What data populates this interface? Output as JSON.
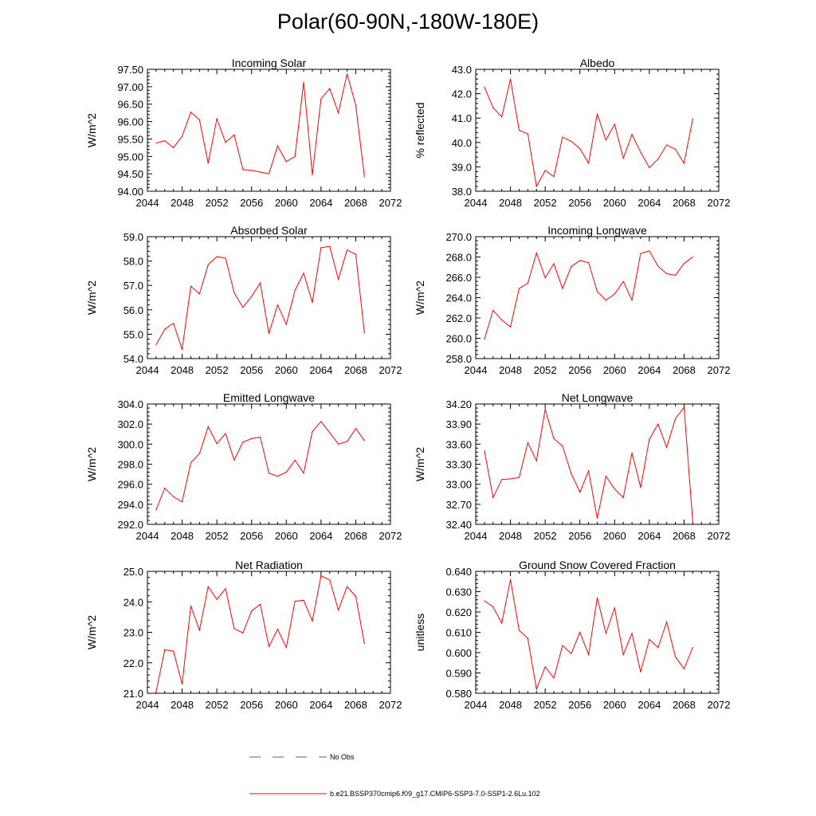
{
  "page_title": "Polar(60-90N,-180W-180E)",
  "colors": {
    "model_line": "#ff0000",
    "obs_line": "#5060a0",
    "axis": "#000000"
  },
  "legend": {
    "obs_label": "No Obs",
    "model_label": "b.e21.BSSP370cmip6.f09_g17.CMIP6-SSP3-7.0-SSP1-2.6Lu.102"
  },
  "chart_data": [
    {
      "type": "line",
      "title": "Incoming Solar",
      "ylabel": "W/m^2",
      "xlim": [
        2044,
        2072
      ],
      "ylim": [
        94.0,
        97.5
      ],
      "xticks": [
        "2044",
        "2048",
        "2052",
        "2056",
        "2060",
        "2064",
        "2068",
        "2072"
      ],
      "yticks": [
        "94.00",
        "94.50",
        "95.00",
        "95.50",
        "96.00",
        "96.50",
        "97.00",
        "97.50"
      ],
      "x": [
        2045,
        2046,
        2047,
        2048,
        2049,
        2050,
        2051,
        2052,
        2053,
        2054,
        2055,
        2056,
        2057,
        2058,
        2059,
        2060,
        2061,
        2062,
        2063,
        2064,
        2065,
        2066,
        2067,
        2068,
        2069
      ],
      "series": [
        {
          "name": "b.e21.BSSP370cmip6.f09_g17.CMIP6-SSP3-7.0-SSP1-2.6Lu.102",
          "values": [
            95.38,
            95.45,
            95.25,
            95.58,
            96.27,
            96.05,
            94.8,
            96.08,
            95.4,
            95.62,
            94.62,
            94.6,
            94.55,
            94.5,
            95.3,
            94.85,
            95.0,
            97.13,
            94.47,
            96.65,
            96.95,
            96.25,
            97.37,
            96.47,
            94.41
          ]
        }
      ]
    },
    {
      "type": "line",
      "title": "Albedo",
      "ylabel": "% reflected",
      "xlim": [
        2044,
        2072
      ],
      "ylim": [
        38.0,
        43.0
      ],
      "xticks": [
        "2044",
        "2048",
        "2052",
        "2056",
        "2060",
        "2064",
        "2068",
        "2072"
      ],
      "yticks": [
        "38.0",
        "39.0",
        "40.0",
        "41.0",
        "42.0",
        "43.0"
      ],
      "x": [
        2045,
        2046,
        2047,
        2048,
        2049,
        2050,
        2051,
        2052,
        2053,
        2054,
        2055,
        2056,
        2057,
        2058,
        2059,
        2060,
        2061,
        2062,
        2063,
        2064,
        2065,
        2066,
        2067,
        2068,
        2069
      ],
      "series": [
        {
          "name": "b.e21.BSSP370cmip6.f09_g17.CMIP6-SSP3-7.0-SSP1-2.6Lu.102",
          "values": [
            42.27,
            41.42,
            41.05,
            42.6,
            40.5,
            40.35,
            38.2,
            38.85,
            38.6,
            40.22,
            40.05,
            39.75,
            39.15,
            41.17,
            40.1,
            40.75,
            39.35,
            40.33,
            39.6,
            38.97,
            39.32,
            39.9,
            39.72,
            39.15,
            40.97
          ]
        }
      ]
    },
    {
      "type": "line",
      "title": "Absorbed Solar",
      "ylabel": "W/m^2",
      "xlim": [
        2044,
        2072
      ],
      "ylim": [
        54.0,
        59.0
      ],
      "xticks": [
        "2044",
        "2048",
        "2052",
        "2056",
        "2060",
        "2064",
        "2068",
        "2072"
      ],
      "yticks": [
        "54.0",
        "55.0",
        "56.0",
        "57.0",
        "58.0",
        "59.0"
      ],
      "x": [
        2045,
        2046,
        2047,
        2048,
        2049,
        2050,
        2051,
        2052,
        2053,
        2054,
        2055,
        2056,
        2057,
        2058,
        2059,
        2060,
        2061,
        2062,
        2063,
        2064,
        2065,
        2066,
        2067,
        2068,
        2069
      ],
      "series": [
        {
          "name": "b.e21.BSSP370cmip6.f09_g17.CMIP6-SSP3-7.0-SSP1-2.6Lu.102",
          "values": [
            54.57,
            55.2,
            55.45,
            54.37,
            56.97,
            56.65,
            57.85,
            58.18,
            58.12,
            56.7,
            56.1,
            56.55,
            57.1,
            55.02,
            56.2,
            55.4,
            56.8,
            57.5,
            56.3,
            58.55,
            58.6,
            57.25,
            58.45,
            58.28,
            55.05
          ]
        }
      ]
    },
    {
      "type": "line",
      "title": "Incoming Longwave",
      "ylabel": "W/m^2",
      "xlim": [
        2044,
        2072
      ],
      "ylim": [
        258.0,
        270.0
      ],
      "xticks": [
        "2044",
        "2048",
        "2052",
        "2056",
        "2060",
        "2064",
        "2068",
        "2072"
      ],
      "yticks": [
        "258.0",
        "260.0",
        "262.0",
        "264.0",
        "266.0",
        "268.0",
        "270.0"
      ],
      "x": [
        2045,
        2046,
        2047,
        2048,
        2049,
        2050,
        2051,
        2052,
        2053,
        2054,
        2055,
        2056,
        2057,
        2058,
        2059,
        2060,
        2061,
        2062,
        2063,
        2064,
        2065,
        2066,
        2067,
        2068,
        2069
      ],
      "series": [
        {
          "name": "b.e21.BSSP370cmip6.f09_g17.CMIP6-SSP3-7.0-SSP1-2.6Lu.102",
          "values": [
            259.9,
            262.75,
            261.8,
            261.1,
            264.9,
            265.4,
            268.4,
            265.95,
            267.35,
            264.9,
            267.05,
            267.65,
            267.45,
            264.6,
            263.75,
            264.35,
            265.6,
            263.75,
            268.35,
            268.6,
            267.1,
            266.35,
            266.2,
            267.35,
            268.0
          ]
        }
      ]
    },
    {
      "type": "line",
      "title": "Emitted Longwave",
      "ylabel": "W/m^2",
      "xlim": [
        2044,
        2072
      ],
      "ylim": [
        292.0,
        304.0
      ],
      "xticks": [
        "2044",
        "2048",
        "2052",
        "2056",
        "2060",
        "2064",
        "2068",
        "2072"
      ],
      "yticks": [
        "292.0",
        "294.0",
        "296.0",
        "298.0",
        "300.0",
        "302.0",
        "304.0"
      ],
      "x": [
        2045,
        2046,
        2047,
        2048,
        2049,
        2050,
        2051,
        2052,
        2053,
        2054,
        2055,
        2056,
        2057,
        2058,
        2059,
        2060,
        2061,
        2062,
        2063,
        2064,
        2065,
        2066,
        2067,
        2068,
        2069
      ],
      "series": [
        {
          "name": "b.e21.BSSP370cmip6.f09_g17.CMIP6-SSP3-7.0-SSP1-2.6Lu.102",
          "values": [
            293.45,
            295.6,
            294.75,
            294.25,
            298.15,
            299.05,
            301.75,
            300.05,
            301.05,
            298.4,
            300.2,
            300.55,
            300.7,
            297.1,
            296.8,
            297.2,
            298.4,
            297.1,
            301.25,
            302.25,
            301.15,
            300.0,
            300.25,
            301.55,
            300.35
          ]
        }
      ]
    },
    {
      "type": "line",
      "title": "Net Longwave",
      "ylabel": "W/m^2",
      "xlim": [
        2044,
        2072
      ],
      "ylim": [
        32.4,
        34.2
      ],
      "xticks": [
        "2044",
        "2048",
        "2052",
        "2056",
        "2060",
        "2064",
        "2068",
        "2072"
      ],
      "yticks": [
        "32.40",
        "32.70",
        "33.00",
        "33.30",
        "33.60",
        "33.90",
        "34.20"
      ],
      "x": [
        2045,
        2046,
        2047,
        2048,
        2049,
        2050,
        2051,
        2052,
        2053,
        2054,
        2055,
        2056,
        2057,
        2058,
        2059,
        2060,
        2061,
        2062,
        2063,
        2064,
        2065,
        2066,
        2067,
        2068,
        2069
      ],
      "series": [
        {
          "name": "b.e21.BSSP370cmip6.f09_g17.CMIP6-SSP3-7.0-SSP1-2.6Lu.102",
          "values": [
            33.5,
            32.8,
            33.07,
            33.08,
            33.1,
            33.62,
            33.35,
            34.12,
            33.68,
            33.57,
            33.16,
            32.88,
            33.2,
            32.49,
            33.12,
            32.93,
            32.8,
            33.47,
            32.95,
            33.67,
            33.9,
            33.55,
            33.98,
            34.15,
            32.44
          ]
        }
      ]
    },
    {
      "type": "line",
      "title": "Net Radiation",
      "ylabel": "W/m^2",
      "xlim": [
        2044,
        2072
      ],
      "ylim": [
        21.0,
        25.0
      ],
      "xticks": [
        "2044",
        "2048",
        "2052",
        "2056",
        "2060",
        "2064",
        "2068",
        "2072"
      ],
      "yticks": [
        "21.0",
        "22.0",
        "23.0",
        "24.0",
        "25.0"
      ],
      "x": [
        2045,
        2046,
        2047,
        2048,
        2049,
        2050,
        2051,
        2052,
        2053,
        2054,
        2055,
        2056,
        2057,
        2058,
        2059,
        2060,
        2061,
        2062,
        2063,
        2064,
        2065,
        2066,
        2067,
        2068,
        2069
      ],
      "series": [
        {
          "name": "b.e21.BSSP370cmip6.f09_g17.CMIP6-SSP3-7.0-SSP1-2.6Lu.102",
          "values": [
            21.05,
            22.43,
            22.38,
            21.3,
            23.87,
            23.07,
            24.5,
            24.08,
            24.43,
            23.12,
            22.98,
            23.7,
            23.92,
            22.53,
            23.1,
            22.5,
            24.02,
            24.05,
            23.37,
            24.85,
            24.72,
            23.73,
            24.5,
            24.18,
            22.63
          ]
        }
      ]
    },
    {
      "type": "line",
      "title": "Ground Snow Covered Fraction",
      "ylabel": "unitless",
      "xlim": [
        2044,
        2072
      ],
      "ylim": [
        0.58,
        0.64
      ],
      "xticks": [
        "2044",
        "2048",
        "2052",
        "2056",
        "2060",
        "2064",
        "2068",
        "2072"
      ],
      "yticks": [
        "0.580",
        "0.590",
        "0.600",
        "0.610",
        "0.620",
        "0.630",
        "0.640"
      ],
      "x": [
        2045,
        2046,
        2047,
        2048,
        2049,
        2050,
        2051,
        2052,
        2053,
        2054,
        2055,
        2056,
        2057,
        2058,
        2059,
        2060,
        2061,
        2062,
        2063,
        2064,
        2065,
        2066,
        2067,
        2068,
        2069
      ],
      "series": [
        {
          "name": "b.e21.BSSP370cmip6.f09_g17.CMIP6-SSP3-7.0-SSP1-2.6Lu.102",
          "values": [
            0.6255,
            0.6225,
            0.6145,
            0.636,
            0.611,
            0.607,
            0.582,
            0.593,
            0.5875,
            0.6035,
            0.5995,
            0.61,
            0.599,
            0.627,
            0.6095,
            0.622,
            0.599,
            0.6095,
            0.5905,
            0.6065,
            0.6025,
            0.615,
            0.598,
            0.592,
            0.6025
          ]
        }
      ]
    }
  ]
}
